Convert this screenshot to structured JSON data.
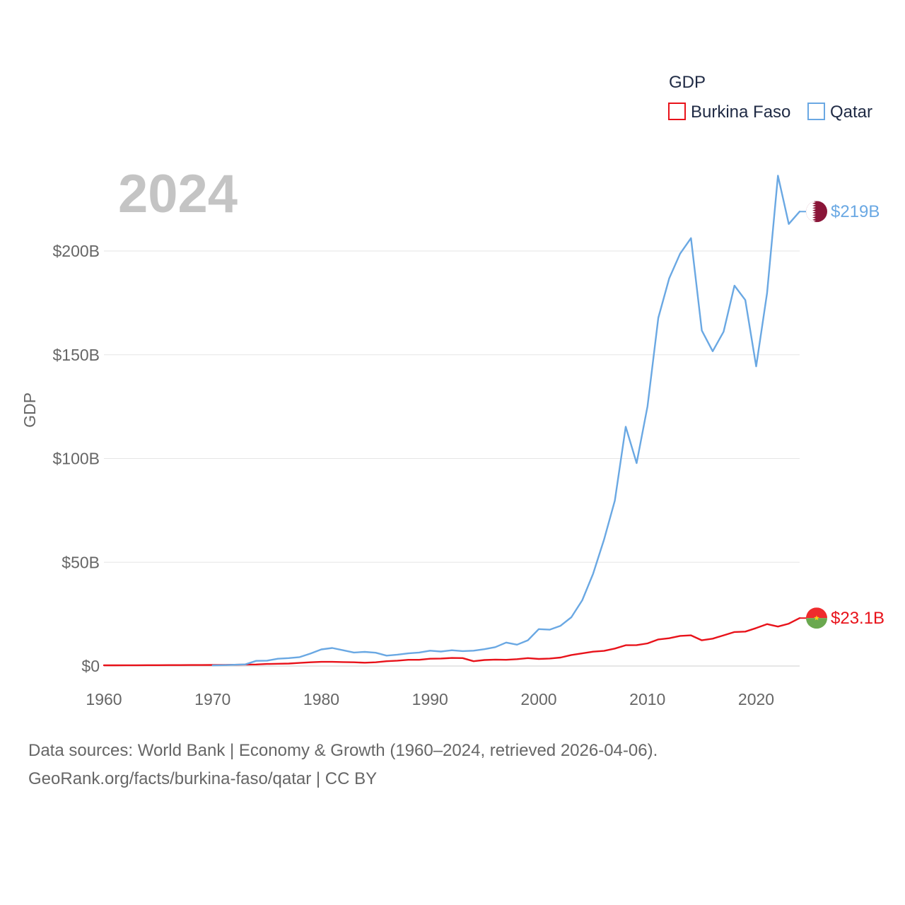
{
  "chart_data": {
    "type": "line",
    "current_year_label": "2024",
    "ylabel": "GDP",
    "xlabel": "",
    "xlim": [
      1960,
      2024
    ],
    "ylim": [
      0,
      240
    ],
    "y_unit": "billion USD",
    "x_ticks": [
      1960,
      1970,
      1980,
      1990,
      2000,
      2010,
      2020
    ],
    "x_tick_labels": [
      "1960",
      "1970",
      "1980",
      "1990",
      "2000",
      "2010",
      "2020"
    ],
    "y_ticks": [
      0,
      50,
      100,
      150,
      200
    ],
    "y_tick_labels": [
      "$0",
      "$50B",
      "$100B",
      "$150B",
      "$200B"
    ],
    "grid": true,
    "legend": {
      "title": "GDP",
      "placement": "top-right",
      "entries": [
        {
          "name": "Burkina Faso",
          "color": "#e8121a"
        },
        {
          "name": "Qatar",
          "color": "#6aa8e3"
        }
      ]
    },
    "series": [
      {
        "name": "Burkina Faso",
        "color": "#e8121a",
        "end_label": "$23.1B",
        "flag": "burkina-faso-flag",
        "x": [
          1960,
          1961,
          1962,
          1963,
          1964,
          1965,
          1966,
          1967,
          1968,
          1969,
          1970,
          1971,
          1972,
          1973,
          1974,
          1975,
          1976,
          1977,
          1978,
          1979,
          1980,
          1981,
          1982,
          1983,
          1984,
          1985,
          1986,
          1987,
          1988,
          1989,
          1990,
          1991,
          1992,
          1993,
          1994,
          1995,
          1996,
          1997,
          1998,
          1999,
          2000,
          2001,
          2002,
          2003,
          2004,
          2005,
          2006,
          2007,
          2008,
          2009,
          2010,
          2011,
          2012,
          2013,
          2014,
          2015,
          2016,
          2017,
          2018,
          2019,
          2020,
          2021,
          2022,
          2023,
          2024
        ],
        "values": [
          0.33,
          0.35,
          0.37,
          0.39,
          0.41,
          0.42,
          0.44,
          0.45,
          0.46,
          0.48,
          0.5,
          0.53,
          0.6,
          0.7,
          0.75,
          1.0,
          1.1,
          1.2,
          1.5,
          1.8,
          2.0,
          2.0,
          1.9,
          1.8,
          1.6,
          1.8,
          2.3,
          2.6,
          3.0,
          3.0,
          3.5,
          3.6,
          3.9,
          3.8,
          2.3,
          2.9,
          3.1,
          3.0,
          3.3,
          3.8,
          3.4,
          3.6,
          4.1,
          5.3,
          6.1,
          6.9,
          7.3,
          8.4,
          10.0,
          10.1,
          10.9,
          12.8,
          13.4,
          14.5,
          14.8,
          12.4,
          13.2,
          14.8,
          16.4,
          16.6,
          18.3,
          20.2,
          19.0,
          20.4,
          23.1
        ]
      },
      {
        "name": "Qatar",
        "color": "#6aa8e3",
        "end_label": "$219B",
        "flag": "qatar-flag",
        "x": [
          1970,
          1971,
          1972,
          1973,
          1974,
          1975,
          1976,
          1977,
          1978,
          1979,
          1980,
          1981,
          1982,
          1983,
          1984,
          1985,
          1986,
          1987,
          1988,
          1989,
          1990,
          1991,
          1992,
          1993,
          1994,
          1995,
          1996,
          1997,
          1998,
          1999,
          2000,
          2001,
          2002,
          2003,
          2004,
          2005,
          2006,
          2007,
          2008,
          2009,
          2010,
          2011,
          2012,
          2013,
          2014,
          2015,
          2016,
          2017,
          2018,
          2019,
          2020,
          2021,
          2022,
          2023,
          2024
        ],
        "values": [
          0.3,
          0.4,
          0.6,
          0.8,
          2.5,
          2.6,
          3.5,
          3.8,
          4.3,
          6.0,
          8.0,
          8.7,
          7.6,
          6.5,
          6.8,
          6.4,
          5.0,
          5.5,
          6.1,
          6.5,
          7.4,
          7.0,
          7.6,
          7.2,
          7.4,
          8.1,
          9.1,
          11.3,
          10.3,
          12.4,
          17.8,
          17.5,
          19.4,
          23.5,
          31.7,
          44.5,
          60.9,
          79.7,
          115.3,
          97.8,
          125.1,
          167.8,
          186.8,
          198.7,
          206.2,
          161.7,
          151.7,
          161.1,
          183.3,
          176.4,
          144.4,
          179.7,
          236.3,
          213.0,
          219.0
        ]
      }
    ]
  },
  "source": {
    "line1": "Data sources: World Bank | Economy & Growth (1960–2024, retrieved 2026-04-06).",
    "line2": "GeoRank.org/facts/burkina-faso/qatar | CC BY"
  }
}
